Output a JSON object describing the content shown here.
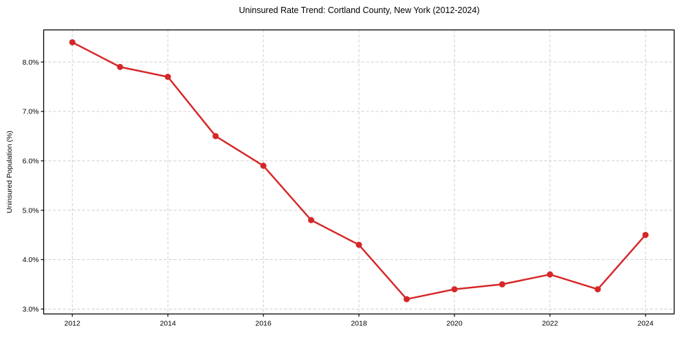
{
  "chart_data": {
    "type": "line",
    "title": "Uninsured Rate Trend: Cortland County, New York (2012-2024)",
    "xlabel": "",
    "ylabel": "Uninsured Population (%)",
    "x": [
      2012,
      2013,
      2014,
      2015,
      2016,
      2017,
      2018,
      2019,
      2020,
      2021,
      2022,
      2023,
      2024
    ],
    "values": [
      8.4,
      7.9,
      7.7,
      6.5,
      5.9,
      4.8,
      4.3,
      3.2,
      3.4,
      3.5,
      3.7,
      3.4,
      4.5
    ],
    "xlim": [
      2011.4,
      2024.6
    ],
    "ylim": [
      2.9,
      8.65
    ],
    "xticks": [
      2012,
      2014,
      2016,
      2018,
      2020,
      2022,
      2024
    ],
    "xtick_labels": [
      "2012",
      "2014",
      "2016",
      "2018",
      "2020",
      "2022",
      "2024"
    ],
    "yticks": [
      3,
      4,
      5,
      6,
      7,
      8
    ],
    "ytick_labels": [
      "3.0%",
      "4.0%",
      "5.0%",
      "6.0%",
      "7.0%",
      "8.0%"
    ],
    "grid": true,
    "grid_style": "dashed",
    "legend_position": "none",
    "line_color": "#d62728",
    "marker": "circle",
    "marker_size": 4.5,
    "line_width": 2.5,
    "grid_color": "#cccccc",
    "grid_dash": "4 3",
    "axis_color": "#000000",
    "text_color": "#000000",
    "background_color": "#ffffff"
  }
}
